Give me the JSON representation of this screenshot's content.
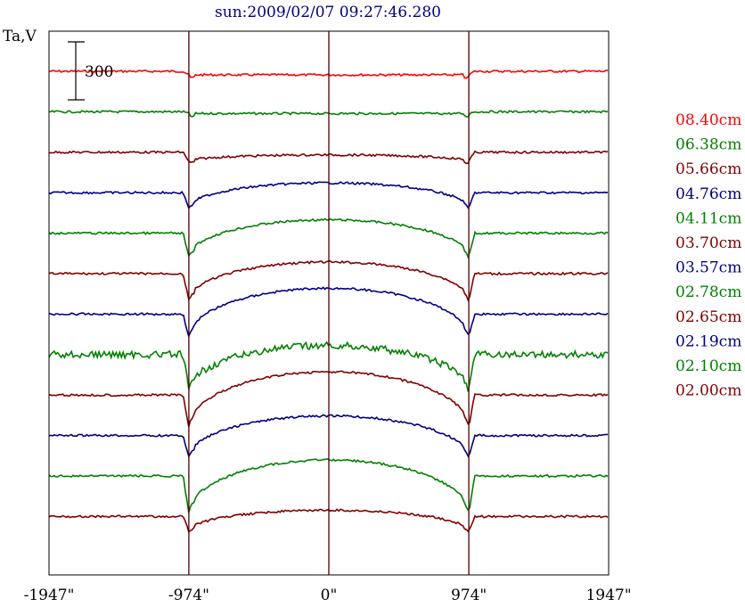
{
  "chart_data": {
    "type": "line",
    "title": "sun:2009/02/07 09:27:46.280",
    "ylabel": "Ta,V",
    "scale_bar_label": "300",
    "xlim": [
      -1947,
      1947
    ],
    "x_ticks": [
      {
        "value": -1947,
        "label": "-1947\""
      },
      {
        "value": -974,
        "label": "-974\""
      },
      {
        "value": 0,
        "label": "0\""
      },
      {
        "value": 974,
        "label": "974\""
      },
      {
        "value": 1947,
        "label": "1947\""
      }
    ],
    "vertical_lines": [
      -974,
      0,
      974
    ],
    "grid": false,
    "legend_position": "right",
    "scale_bar_value": 300,
    "trace_spacing": 45,
    "series": [
      {
        "name": "08.40cm",
        "color": "#ff0000",
        "base": 0,
        "depth": 4,
        "dome": 0
      },
      {
        "name": "06.38cm",
        "color": "#008000",
        "base": 45,
        "depth": 2,
        "dome": 0
      },
      {
        "name": "05.66cm",
        "color": "#800000",
        "base": 90,
        "depth": 10,
        "dome": 7
      },
      {
        "name": "04.76cm",
        "color": "#000080",
        "base": 135,
        "depth": 17,
        "dome": 28
      },
      {
        "name": "04.11cm",
        "color": "#008000",
        "base": 180,
        "depth": 27,
        "dome": 42
      },
      {
        "name": "03.70cm",
        "color": "#800000",
        "base": 225,
        "depth": 30,
        "dome": 43
      },
      {
        "name": "03.57cm",
        "color": "#000080",
        "base": 270,
        "depth": 26,
        "dome": 55
      },
      {
        "name": "02.78cm",
        "color": "#008000",
        "base": 315,
        "depth": 40,
        "dome": 50
      },
      {
        "name": "02.65cm",
        "color": "#800000",
        "base": 360,
        "depth": 36,
        "dome": 62
      },
      {
        "name": "02.19cm",
        "color": "#000080",
        "base": 405,
        "depth": 25,
        "dome": 47
      },
      {
        "name": "02.10cm",
        "color": "#008000",
        "base": 450,
        "depth": 42,
        "dome": 60
      },
      {
        "name": "02.00cm",
        "color": "#800000",
        "base": 495,
        "depth": 17,
        "dome": 24
      }
    ]
  }
}
